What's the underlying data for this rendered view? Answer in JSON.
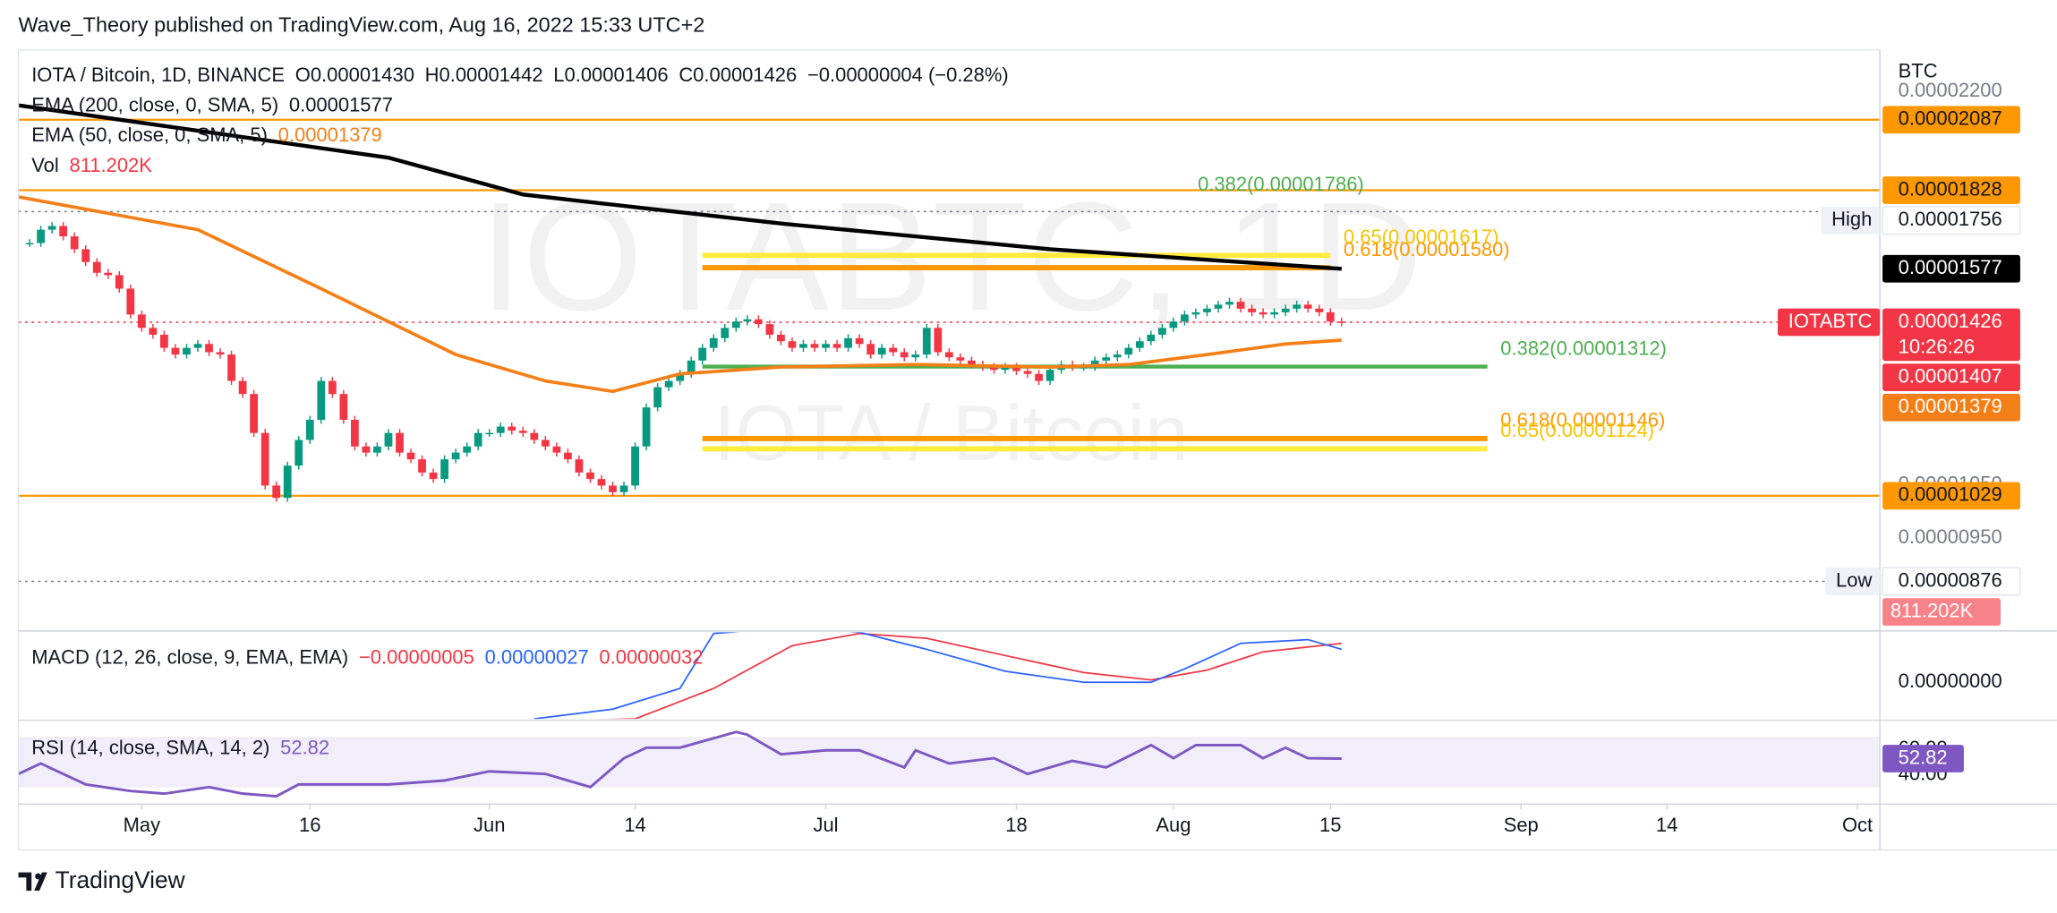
{
  "header": {
    "title": "Wave_Theory published on TradingView.com, Aug 16, 2022 15:33 UTC+2"
  },
  "footer": {
    "brand": "TradingView"
  },
  "chart_data": {
    "type": "candlestick",
    "title": "IOTA / Bitcoin, 1D, BINANCE",
    "ohlc_legend": [
      "O0.00001430",
      "H0.00001442",
      "L0.00001406",
      "C0.00001426",
      "−0.00000004 (−0.28%)"
    ],
    "watermark": "IOTABTC, 1D",
    "watermark_sub": "IOTA / Bitcoin",
    "y_unit": "BTC",
    "log_scale": true,
    "ylim": [
      8e-06,
      2.38e-05
    ],
    "xlim": [
      "2022-04-20",
      "2022-10-03"
    ],
    "xticks": [
      {
        "value": "2022-05-01",
        "label": "May"
      },
      {
        "value": "2022-05-16",
        "label": "16"
      },
      {
        "value": "2022-06-01",
        "label": "Jun"
      },
      {
        "value": "2022-06-14",
        "label": "14"
      },
      {
        "value": "2022-07-01",
        "label": "Jul"
      },
      {
        "value": "2022-07-18",
        "label": "18"
      },
      {
        "value": "2022-08-01",
        "label": "Aug"
      },
      {
        "value": "2022-08-15",
        "label": "15"
      },
      {
        "value": "2022-09-01",
        "label": "Sep"
      },
      {
        "value": "2022-09-14",
        "label": "14"
      },
      {
        "value": "2022-10-01",
        "label": "Oct"
      }
    ],
    "yticks": [
      {
        "value": 2.2e-05,
        "label": "0.00002200"
      },
      {
        "value": 1.05e-05,
        "label": "0.00001050"
      },
      {
        "value": 9.5e-06,
        "label": "0.00000950"
      }
    ],
    "colors": {
      "up": "#089981",
      "down": "#f23645"
    },
    "candles": {
      "start": "2022-04-21",
      "close": [
        1.655e-05,
        1.697e-05,
        1.709e-05,
        1.676e-05,
        1.636e-05,
        1.597e-05,
        1.565e-05,
        1.558e-05,
        1.519e-05,
        1.447e-05,
        1.411e-05,
        1.393e-05,
        1.359e-05,
        1.342e-05,
        1.359e-05,
        1.369e-05,
        1.348e-05,
        1.342e-05,
        1.277e-05,
        1.246e-05,
        1.158e-05,
        1.049e-05,
        1.025e-05,
        1.089e-05,
        1.143e-05,
        1.187e-05,
        1.277e-05,
        1.246e-05,
        1.187e-05,
        1.129e-05,
        1.116e-05,
        1.129e-05,
        1.158e-05,
        1.116e-05,
        1.102e-05,
        1.075e-05,
        1.062e-05,
        1.102e-05,
        1.116e-05,
        1.129e-05,
        1.158e-05,
        1.158e-05,
        1.172e-05,
        1.163e-05,
        1.158e-05,
        1.143e-05,
        1.129e-05,
        1.116e-05,
        1.102e-05,
        1.075e-05,
        1.062e-05,
        1.049e-05,
        1.036e-05,
        1.049e-05,
        1.129e-05,
        1.215e-05,
        1.262e-05,
        1.277e-05,
        1.294e-05,
        1.327e-05,
        1.359e-05,
        1.384e-05,
        1.411e-05,
        1.428e-05,
        1.434e-05,
        1.421e-05,
        1.393e-05,
        1.376e-05,
        1.359e-05,
        1.369e-05,
        1.359e-05,
        1.369e-05,
        1.359e-05,
        1.384e-05,
        1.369e-05,
        1.342e-05,
        1.359e-05,
        1.348e-05,
        1.335e-05,
        1.342e-05,
        1.411e-05,
        1.348e-05,
        1.335e-05,
        1.327e-05,
        1.317e-05,
        1.311e-05,
        1.304e-05,
        1.311e-05,
        1.301e-05,
        1.294e-05,
        1.277e-05,
        1.304e-05,
        1.317e-05,
        1.311e-05,
        1.311e-05,
        1.327e-05,
        1.335e-05,
        1.342e-05,
        1.359e-05,
        1.376e-05,
        1.393e-05,
        1.411e-05,
        1.428e-05,
        1.447e-05,
        1.453e-05,
        1.463e-05,
        1.474e-05,
        1.482e-05,
        1.463e-05,
        1.453e-05,
        1.447e-05,
        1.453e-05,
        1.463e-05,
        1.474e-05,
        1.463e-05,
        1.453e-05,
        1.428e-05,
        1.426e-05
      ]
    },
    "series": [
      {
        "name": "EMA (200, close, 0, SMA, 5)",
        "value_label": "0.00001577",
        "color": "#000000",
        "label_color": "#131722",
        "x": [
          "2022-04-20",
          "2022-05-23",
          "2022-06-04",
          "2022-06-27",
          "2022-07-21",
          "2022-08-16"
        ],
        "values": [
          2.144e-05,
          1.943e-05,
          1.813e-05,
          1.717e-05,
          1.636e-05,
          1.577e-05
        ]
      },
      {
        "name": "EMA (50, close, 0, SMA, 5)",
        "value_label": "0.00001379",
        "color": "#f57f17",
        "label_color": "#f57f17",
        "x": [
          "2022-04-20",
          "2022-05-06",
          "2022-05-17",
          "2022-05-29",
          "2022-06-06",
          "2022-06-12",
          "2022-06-18",
          "2022-06-27",
          "2022-07-09",
          "2022-07-21",
          "2022-07-28",
          "2022-08-04",
          "2022-08-11",
          "2022-08-16"
        ],
        "values": [
          1.805e-05,
          1.697e-05,
          1.519e-05,
          1.342e-05,
          1.277e-05,
          1.252e-05,
          1.294e-05,
          1.311e-05,
          1.317e-05,
          1.311e-05,
          1.317e-05,
          1.342e-05,
          1.369e-05,
          1.379e-05
        ]
      }
    ],
    "volume": {
      "name": "Vol",
      "value_label": "811.202K"
    },
    "levels": [
      {
        "value": 2.087e-05,
        "color": "#ff9800",
        "style": "solid"
      },
      {
        "value": 1.828e-05,
        "color": "#ff9800",
        "style": "solid"
      },
      {
        "value": 1.029e-05,
        "color": "#ff9800",
        "style": "solid"
      },
      {
        "value": 1.756e-05,
        "color": "#787b86",
        "style": "dotted"
      },
      {
        "value": 8.76e-06,
        "color": "#787b86",
        "style": "dotted"
      },
      {
        "value": 1.426e-05,
        "color": "#f23645",
        "style": "dotted"
      }
    ],
    "fibs": [
      {
        "value": 1.786e-05,
        "label": "0.382(0.00001786)",
        "color": "#4caf50",
        "text_color": "#4caf50",
        "from": null,
        "to": "2022-08-02"
      },
      {
        "value": 1.617e-05,
        "label": "0.65(0.00001617)",
        "color": "#ffeb3b",
        "text_color": "#f5c400",
        "from": "2022-06-20",
        "to": "2022-08-15"
      },
      {
        "value": 1.58e-05,
        "label": "0.618(0.00001580)",
        "color": "#ff9800",
        "text_color": "#ff9800",
        "from": "2022-06-20",
        "to": "2022-08-15"
      },
      {
        "value": 1.312e-05,
        "label": "0.382(0.00001312)",
        "color": "#4caf50",
        "text_color": "#4caf50",
        "from": "2022-06-20",
        "to": "2022-08-29"
      },
      {
        "value": 1.146e-05,
        "label": "0.618(0.00001146)",
        "color": "#ff9800",
        "text_color": "#ff9800",
        "from": "2022-06-20",
        "to": "2022-08-29"
      },
      {
        "value": 1.124e-05,
        "label": "0.65(0.00001124)",
        "color": "#ffeb3b",
        "text_color": "#f5c400",
        "from": "2022-06-20",
        "to": "2022-08-29"
      }
    ],
    "price_labels": [
      {
        "value": 2.087e-05,
        "label": "0.00002087",
        "bg": "#ff9800",
        "fg": "#131722"
      },
      {
        "value": 1.828e-05,
        "label": "0.00001828",
        "bg": "#ff9800",
        "fg": "#131722"
      },
      {
        "value": 1.756e-05,
        "label": "0.00001756",
        "bg": "#ffffff",
        "fg": "#131722",
        "tag": "High"
      },
      {
        "value": 1.577e-05,
        "label": "0.00001577",
        "bg": "#000000",
        "fg": "#ffffff"
      },
      {
        "value": 1.426e-05,
        "label": "0.00001426",
        "bg": "#f23645",
        "fg": "#ffffff",
        "tag": "IOTABTC",
        "sub": "10:26:26"
      },
      {
        "value": 1.407e-05,
        "label": "0.00001407",
        "bg": "#f23645",
        "fg": "#ffffff"
      },
      {
        "value": 1.379e-05,
        "label": "0.00001379",
        "bg": "#f57f17",
        "fg": "#ffffff"
      },
      {
        "value": 1.029e-05,
        "label": "0.00001029",
        "bg": "#ff9800",
        "fg": "#131722"
      },
      {
        "value": 8.76e-06,
        "label": "0.00000876",
        "bg": "#ffffff",
        "fg": "#131722",
        "tag": "Low"
      }
    ],
    "macd": {
      "name": "MACD (12, 26, close, 9, EMA, EMA)",
      "hist_label": "−0.00000005",
      "macd_label": "0.00000027",
      "signal_label": "0.00000032",
      "ylim": [
        -3e-07,
        4.1e-07
      ],
      "yticks": [
        {
          "value": 0,
          "label": "0.00000000"
        }
      ],
      "macd_color": "#2962ff",
      "signal_color": "#f23645",
      "macd_x": [
        "2022-06-05",
        "2022-06-12",
        "2022-06-18",
        "2022-06-21",
        "2022-06-28",
        "2022-07-04",
        "2022-07-10",
        "2022-07-17",
        "2022-07-24",
        "2022-07-30",
        "2022-08-02",
        "2022-08-07",
        "2022-08-13",
        "2022-08-16"
      ],
      "macd_values": [
        -3e-07,
        -2.2e-07,
        -5e-08,
        4e-07,
        4.5e-07,
        4.1e-07,
        2.7e-07,
        9e-08,
        0,
        0,
        1.1e-07,
        3.2e-07,
        3.5e-07,
        2.7e-07
      ],
      "signal_x": [
        "2022-06-05",
        "2022-06-14",
        "2022-06-21",
        "2022-06-28",
        "2022-07-04",
        "2022-07-10",
        "2022-07-17",
        "2022-07-24",
        "2022-07-30",
        "2022-08-04",
        "2022-08-09",
        "2022-08-16"
      ],
      "signal_values": [
        -3.2e-07,
        -3e-07,
        -5e-08,
        3e-07,
        4e-07,
        3.6e-07,
        2.2e-07,
        8e-08,
        2e-08,
        1e-07,
        2.5e-07,
        3.2e-07
      ]
    },
    "rsi": {
      "name": "RSI (14, close, SMA, 14, 2)",
      "value": 52.82,
      "color": "#7e57c2",
      "ylim": [
        20,
        80
      ],
      "band": [
        30,
        70
      ],
      "yticks": [
        {
          "value": 60,
          "label": "60.00"
        },
        {
          "value": 40,
          "label": "40.00"
        }
      ],
      "x": [
        "2022-04-20",
        "2022-04-22",
        "2022-04-24",
        "2022-04-26",
        "2022-04-30",
        "2022-05-03",
        "2022-05-07",
        "2022-05-10",
        "2022-05-13",
        "2022-05-15",
        "2022-05-18",
        "2022-05-23",
        "2022-05-28",
        "2022-06-01",
        "2022-06-06",
        "2022-06-10",
        "2022-06-13",
        "2022-06-15",
        "2022-06-18",
        "2022-06-23",
        "2022-06-24",
        "2022-06-27",
        "2022-07-01",
        "2022-07-04",
        "2022-07-08",
        "2022-07-09",
        "2022-07-12",
        "2022-07-16",
        "2022-07-19",
        "2022-07-23",
        "2022-07-26",
        "2022-07-30",
        "2022-08-01",
        "2022-08-03",
        "2022-08-07",
        "2022-08-09",
        "2022-08-11",
        "2022-08-13",
        "2022-08-16"
      ],
      "values": [
        40.7,
        49,
        40.7,
        32.4,
        27.2,
        25.2,
        30.3,
        25.2,
        23.1,
        32.4,
        32.4,
        32.4,
        35.5,
        42.8,
        40.7,
        30.3,
        53.1,
        61.4,
        61.4,
        73.8,
        71.7,
        56.2,
        59.3,
        59.3,
        45.9,
        59.3,
        49,
        53.1,
        40.7,
        51,
        45.9,
        63.4,
        53.1,
        63.4,
        63.4,
        53.1,
        61.4,
        53.1,
        52.82
      ]
    }
  }
}
